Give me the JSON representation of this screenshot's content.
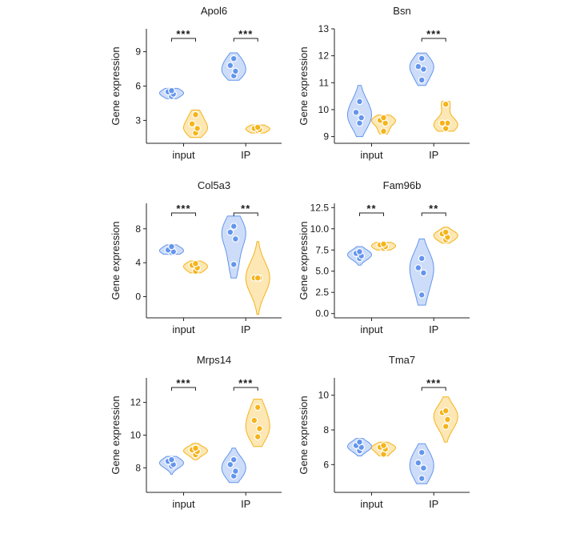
{
  "colors": {
    "input_series": "#6495ED",
    "ip_series": "#F5B41A"
  },
  "chart_data": [
    {
      "type": "violin",
      "title": "Apol6",
      "ylabel": "Gene expression",
      "categories": [
        "input",
        "IP"
      ],
      "yticks": [
        3,
        6,
        9
      ],
      "ylim": [
        1.0,
        11.0
      ],
      "groups": [
        {
          "category": "input",
          "significance": "***",
          "violins": [
            {
              "points": [
                5.1,
                5.3,
                5.5,
                5.6
              ],
              "extent": [
                4.9,
                5.8
              ]
            },
            {
              "points": [
                1.9,
                2.3,
                2.7,
                3.5
              ],
              "extent": [
                1.5,
                3.9
              ]
            }
          ]
        },
        {
          "category": "IP",
          "significance": "***",
          "violins": [
            {
              "points": [
                6.9,
                7.3,
                7.8,
                8.4
              ],
              "extent": [
                6.5,
                8.9
              ]
            },
            {
              "points": [
                2.1,
                2.2,
                2.3,
                2.4
              ],
              "extent": [
                1.9,
                2.6
              ]
            }
          ]
        }
      ]
    },
    {
      "type": "violin",
      "title": "Bsn",
      "ylabel": "Gene expression",
      "categories": [
        "input",
        "IP"
      ],
      "yticks": [
        9,
        10,
        11,
        12,
        13
      ],
      "ylim": [
        8.75,
        13.0
      ],
      "groups": [
        {
          "category": "input",
          "significance": "",
          "violins": [
            {
              "points": [
                9.5,
                9.7,
                9.9,
                10.3
              ],
              "extent": [
                9.0,
                10.9
              ]
            },
            {
              "points": [
                9.2,
                9.5,
                9.6,
                9.7
              ],
              "extent": [
                9.1,
                9.8
              ]
            }
          ]
        },
        {
          "category": "IP",
          "significance": "***",
          "violins": [
            {
              "points": [
                11.1,
                11.5,
                11.6,
                11.9
              ],
              "extent": [
                10.9,
                12.1
              ]
            },
            {
              "points": [
                9.3,
                9.5,
                9.5,
                10.2
              ],
              "extent": [
                9.2,
                10.3
              ]
            }
          ]
        }
      ]
    },
    {
      "type": "violin",
      "title": "Col5a3",
      "ylabel": "Gene expression",
      "categories": [
        "input",
        "IP"
      ],
      "yticks": [
        0,
        4,
        8
      ],
      "ylim": [
        -2.5,
        11.0
      ],
      "groups": [
        {
          "category": "input",
          "significance": "***",
          "violins": [
            {
              "points": [
                5.2,
                5.3,
                5.5,
                5.9
              ],
              "extent": [
                5.0,
                6.1
              ]
            },
            {
              "points": [
                3.0,
                3.4,
                3.7,
                3.9
              ],
              "extent": [
                2.8,
                4.2
              ]
            }
          ]
        },
        {
          "category": "IP",
          "significance": "**",
          "violins": [
            {
              "points": [
                3.8,
                6.8,
                7.6,
                8.3
              ],
              "extent": [
                2.2,
                9.5
              ]
            },
            {
              "points": [
                2.2,
                2.2,
                2.2,
                2.2
              ],
              "extent": [
                -2.1,
                6.5
              ]
            }
          ]
        }
      ]
    },
    {
      "type": "violin",
      "title": "Fam96b",
      "ylabel": "Gene expression",
      "categories": [
        "input",
        "IP"
      ],
      "yticks": [
        0.0,
        2.5,
        5.0,
        7.5,
        10.0,
        12.5
      ],
      "ytick_labels": [
        "0.0",
        "2.5",
        "5.0",
        "7.5",
        "10.0",
        "12.5"
      ],
      "ylim": [
        -0.5,
        13.0
      ],
      "groups": [
        {
          "category": "input",
          "significance": "**",
          "violins": [
            {
              "points": [
                6.5,
                6.8,
                7.1,
                7.3
              ],
              "extent": [
                5.7,
                7.9
              ]
            },
            {
              "points": [
                7.7,
                7.9,
                8.1,
                8.2
              ],
              "extent": [
                7.5,
                8.4
              ]
            }
          ]
        },
        {
          "category": "IP",
          "significance": "**",
          "violins": [
            {
              "points": [
                2.2,
                4.8,
                5.4,
                6.5
              ],
              "extent": [
                1.0,
                8.8
              ]
            },
            {
              "points": [
                8.7,
                9.0,
                9.4,
                9.6
              ],
              "extent": [
                8.3,
                10.2
              ]
            }
          ]
        }
      ]
    },
    {
      "type": "violin",
      "title": "Mrps14",
      "ylabel": "Gene expression",
      "categories": [
        "input",
        "IP"
      ],
      "yticks": [
        8,
        10,
        12
      ],
      "ylim": [
        6.5,
        13.5
      ],
      "groups": [
        {
          "category": "input",
          "significance": "***",
          "violins": [
            {
              "points": [
                8.1,
                8.2,
                8.4,
                8.5
              ],
              "extent": [
                7.6,
                8.7
              ]
            },
            {
              "points": [
                8.8,
                9.0,
                9.1,
                9.2
              ],
              "extent": [
                8.5,
                9.5
              ]
            }
          ]
        },
        {
          "category": "IP",
          "significance": "***",
          "violins": [
            {
              "points": [
                7.5,
                7.8,
                8.2,
                8.5
              ],
              "extent": [
                7.1,
                9.2
              ]
            },
            {
              "points": [
                9.9,
                10.4,
                10.9,
                11.7
              ],
              "extent": [
                9.3,
                12.2
              ]
            }
          ]
        }
      ]
    },
    {
      "type": "violin",
      "title": "Tma7",
      "ylabel": "Gene expression",
      "categories": [
        "input",
        "IP"
      ],
      "yticks": [
        6,
        8,
        10
      ],
      "ylim": [
        4.4,
        11.0
      ],
      "groups": [
        {
          "category": "input",
          "significance": "",
          "violins": [
            {
              "points": [
                6.8,
                7.0,
                7.1,
                7.3
              ],
              "extent": [
                6.5,
                7.5
              ]
            },
            {
              "points": [
                6.6,
                6.9,
                7.0,
                7.1
              ],
              "extent": [
                6.5,
                7.3
              ]
            }
          ]
        },
        {
          "category": "IP",
          "significance": "***",
          "violins": [
            {
              "points": [
                5.2,
                5.8,
                6.1,
                6.7
              ],
              "extent": [
                4.9,
                7.2
              ]
            },
            {
              "points": [
                8.2,
                8.6,
                9.0,
                9.1
              ],
              "extent": [
                7.3,
                9.9
              ]
            }
          ]
        }
      ]
    }
  ]
}
